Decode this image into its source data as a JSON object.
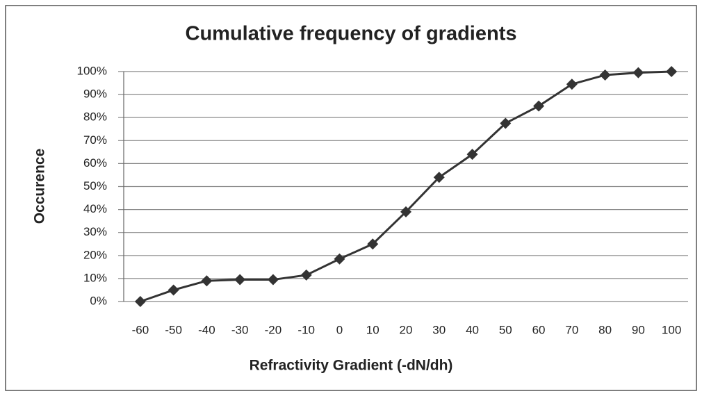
{
  "chart_data": {
    "type": "line",
    "title": "Cumulative frequency of gradients",
    "x_label": "Refractivity Gradient (-dN/dh)",
    "y_label": "Occurence",
    "x": [
      -60,
      -50,
      -40,
      -30,
      -20,
      -10,
      0,
      10,
      20,
      30,
      40,
      50,
      60,
      70,
      80,
      90,
      100
    ],
    "series": [
      {
        "name": "Occurence",
        "color": "#333333",
        "values": [
          0,
          5,
          9,
          9.5,
          9.5,
          11.5,
          18.5,
          25,
          39,
          54,
          64,
          77.5,
          85,
          94.5,
          98.5,
          99.5,
          100
        ]
      }
    ],
    "xlim": [
      -65,
      105
    ],
    "ylim": [
      0,
      100
    ],
    "yticks": [
      {
        "value": 0,
        "label": "0%"
      },
      {
        "value": 10,
        "label": "10%"
      },
      {
        "value": 20,
        "label": "20%"
      },
      {
        "value": 30,
        "label": "30%"
      },
      {
        "value": 40,
        "label": "40%"
      },
      {
        "value": 50,
        "label": "50%"
      },
      {
        "value": 60,
        "label": "60%"
      },
      {
        "value": 70,
        "label": "70%"
      },
      {
        "value": 80,
        "label": "80%"
      },
      {
        "value": 90,
        "label": "90%"
      },
      {
        "value": 100,
        "label": "100%"
      }
    ],
    "grid": true
  }
}
